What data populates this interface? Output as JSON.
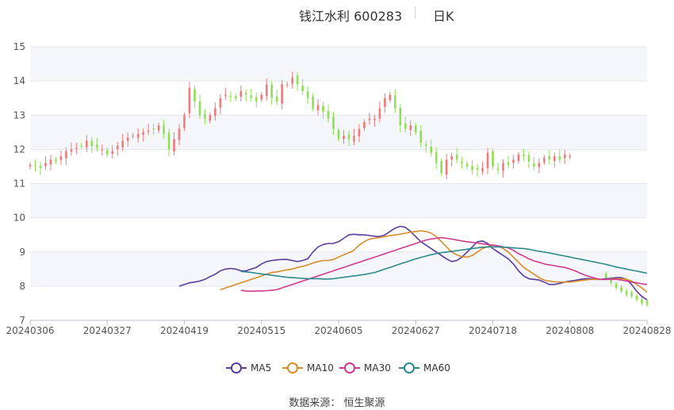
{
  "header": {
    "title": "钱江水利 600283",
    "period": "日K"
  },
  "source": "数据来源：  恒生聚源",
  "legend": [
    {
      "key": "ma5",
      "label": "MA5",
      "color": "#5b3c9e"
    },
    {
      "key": "ma10",
      "label": "MA10",
      "color": "#d98b2b"
    },
    {
      "key": "ma30",
      "label": "MA30",
      "color": "#cf3b91"
    },
    {
      "key": "ma60",
      "label": "MA60",
      "color": "#2b8a8c"
    }
  ],
  "colors": {
    "up": "#ef7a7a",
    "down": "#8fe053",
    "grid": "#e3e6ef",
    "band": "#f5f6fa"
  },
  "chart_data": {
    "type": "candlestick",
    "title": "钱江水利 600283",
    "period": "日K",
    "y_axis": {
      "min": 7,
      "max": 15,
      "ticks": [
        7,
        8,
        9,
        10,
        11,
        12,
        13,
        14,
        15
      ]
    },
    "x_ticks": [
      {
        "index": 0,
        "label": "20240306"
      },
      {
        "index": 15,
        "label": "20240327"
      },
      {
        "index": 30,
        "label": "20240419"
      },
      {
        "index": 45,
        "label": "20240515"
      },
      {
        "index": 60,
        "label": "20240605"
      },
      {
        "index": 75,
        "label": "20240627"
      },
      {
        "index": 90,
        "label": "20240718"
      },
      {
        "index": 105,
        "label": "20240808"
      },
      {
        "index": 120,
        "label": "20240828"
      }
    ],
    "x_count": 121,
    "candles_count": 111,
    "closes": [
      11.55,
      11.5,
      11.45,
      11.6,
      11.7,
      11.65,
      11.8,
      11.95,
      12.0,
      12.05,
      12.1,
      12.25,
      12.1,
      12.05,
      12.0,
      11.85,
      11.95,
      12.1,
      12.25,
      12.35,
      12.4,
      12.45,
      12.5,
      12.55,
      12.6,
      12.7,
      12.45,
      12.0,
      12.3,
      12.6,
      13.0,
      13.8,
      13.4,
      13.0,
      12.9,
      13.0,
      13.2,
      13.5,
      13.6,
      13.55,
      13.5,
      13.7,
      13.6,
      13.5,
      13.4,
      13.6,
      13.9,
      13.5,
      13.4,
      13.9,
      13.9,
      14.1,
      13.9,
      13.7,
      13.5,
      13.2,
      13.3,
      13.1,
      12.9,
      12.6,
      12.3,
      12.4,
      12.3,
      12.4,
      12.6,
      12.8,
      12.9,
      12.9,
      13.2,
      13.5,
      13.6,
      13.2,
      12.7,
      12.6,
      12.7,
      12.5,
      12.2,
      12.1,
      11.9,
      11.6,
      11.3,
      11.7,
      11.8,
      11.7,
      11.6,
      11.5,
      11.4,
      11.4,
      11.45,
      11.9,
      11.5,
      11.4,
      11.6,
      11.55,
      11.7,
      11.85,
      11.8,
      11.65,
      11.5,
      11.6,
      11.75,
      11.7,
      11.8,
      11.7,
      11.85,
      11.8
    ],
    "ma60_endpoints": {
      "start": 8.43,
      "end": 8.38
    },
    "tail_down_candles": [
      8.25,
      8.1,
      7.95,
      7.85,
      7.75,
      7.7,
      7.6,
      7.5,
      7.45
    ],
    "series": [
      {
        "name": "MA5",
        "values": [
          8.0,
          8.05,
          8.1,
          8.12,
          8.15,
          8.2,
          8.28,
          8.35,
          8.45,
          8.5,
          8.52,
          8.5,
          8.45,
          8.45,
          8.5,
          8.55,
          8.65,
          8.72,
          8.75,
          8.77,
          8.78,
          8.78,
          8.75,
          8.72,
          8.75,
          8.8,
          9.0,
          9.15,
          9.22,
          9.25,
          9.25,
          9.3,
          9.4,
          9.5,
          9.52,
          9.5,
          9.5,
          9.48,
          9.46,
          9.45,
          9.5,
          9.6,
          9.7,
          9.75,
          9.72,
          9.6,
          9.45,
          9.3,
          9.2,
          9.1,
          9.0,
          8.9,
          8.8,
          8.72,
          8.75,
          8.85,
          9.0,
          9.15,
          9.3,
          9.32,
          9.25,
          9.1,
          9.0,
          8.9,
          8.8,
          8.65,
          8.45,
          8.3,
          8.22,
          8.2,
          8.18,
          8.12,
          8.05,
          8.05,
          8.08,
          8.12,
          8.15,
          8.17,
          8.2,
          8.22,
          8.22,
          8.2,
          8.2,
          8.22,
          8.23,
          8.25,
          8.25,
          8.2,
          8.05,
          7.85,
          7.7,
          7.6
        ]
      },
      {
        "name": "MA10",
        "values": [
          7.9,
          7.95,
          8.0,
          8.05,
          8.1,
          8.15,
          8.2,
          8.25,
          8.3,
          8.35,
          8.4,
          8.42,
          8.45,
          8.48,
          8.5,
          8.55,
          8.58,
          8.62,
          8.68,
          8.72,
          8.75,
          8.75,
          8.78,
          8.85,
          8.92,
          8.98,
          9.05,
          9.2,
          9.3,
          9.38,
          9.4,
          9.42,
          9.45,
          9.48,
          9.5,
          9.52,
          9.55,
          9.58,
          9.6,
          9.62,
          9.6,
          9.55,
          9.45,
          9.3,
          9.15,
          9.0,
          8.92,
          8.86,
          8.85,
          8.9,
          9.0,
          9.1,
          9.15,
          9.2,
          9.18,
          9.1,
          9.0,
          8.85,
          8.7,
          8.55,
          8.45,
          8.35,
          8.25,
          8.18,
          8.15,
          8.13,
          8.12,
          8.12,
          8.12,
          8.14,
          8.16,
          8.18,
          8.2,
          8.2,
          8.2,
          8.2,
          8.21,
          8.22,
          8.22,
          8.2,
          8.15,
          8.05,
          7.95,
          7.82
        ]
      },
      {
        "name": "MA30",
        "values": [
          7.88,
          7.86,
          7.85,
          7.86,
          7.86,
          7.87,
          7.88,
          7.9,
          7.95,
          8.0,
          8.05,
          8.1,
          8.15,
          8.2,
          8.25,
          8.3,
          8.35,
          8.4,
          8.45,
          8.5,
          8.55,
          8.6,
          8.65,
          8.7,
          8.75,
          8.8,
          8.85,
          8.9,
          8.95,
          9.0,
          9.05,
          9.1,
          9.15,
          9.2,
          9.25,
          9.3,
          9.35,
          9.38,
          9.4,
          9.42,
          9.4,
          9.38,
          9.35,
          9.32,
          9.3,
          9.28,
          9.26,
          9.24,
          9.22,
          9.2,
          9.18,
          9.15,
          9.12,
          9.05,
          8.95,
          8.88,
          8.8,
          8.74,
          8.7,
          8.65,
          8.62,
          8.6,
          8.57,
          8.55,
          8.5,
          8.45,
          8.38,
          8.32,
          8.27,
          8.23,
          8.2,
          8.2,
          8.2,
          8.2,
          8.18,
          8.15,
          8.12,
          8.1,
          8.07,
          8.05
        ]
      },
      {
        "name": "MA60",
        "values": [
          8.43,
          8.42,
          8.4,
          8.38,
          8.36,
          8.34,
          8.32,
          8.3,
          8.28,
          8.26,
          8.25,
          8.24,
          8.23,
          8.22,
          8.22,
          8.22,
          8.21,
          8.21,
          8.22,
          8.24,
          8.26,
          8.28,
          8.3,
          8.32,
          8.34,
          8.37,
          8.4,
          8.45,
          8.5,
          8.55,
          8.6,
          8.65,
          8.7,
          8.75,
          8.8,
          8.84,
          8.88,
          8.92,
          8.95,
          8.98,
          9.0,
          9.02,
          9.04,
          9.06,
          9.08,
          9.1,
          9.12,
          9.14,
          9.15,
          9.15,
          9.15,
          9.14,
          9.13,
          9.12,
          9.11,
          9.1,
          9.08,
          9.05,
          9.02,
          9.0,
          8.97,
          8.94,
          8.91,
          8.88,
          8.85,
          8.82,
          8.79,
          8.76,
          8.73,
          8.7,
          8.67,
          8.64,
          8.6,
          8.56,
          8.53,
          8.5,
          8.47,
          8.44,
          8.41,
          8.38
        ]
      }
    ]
  }
}
